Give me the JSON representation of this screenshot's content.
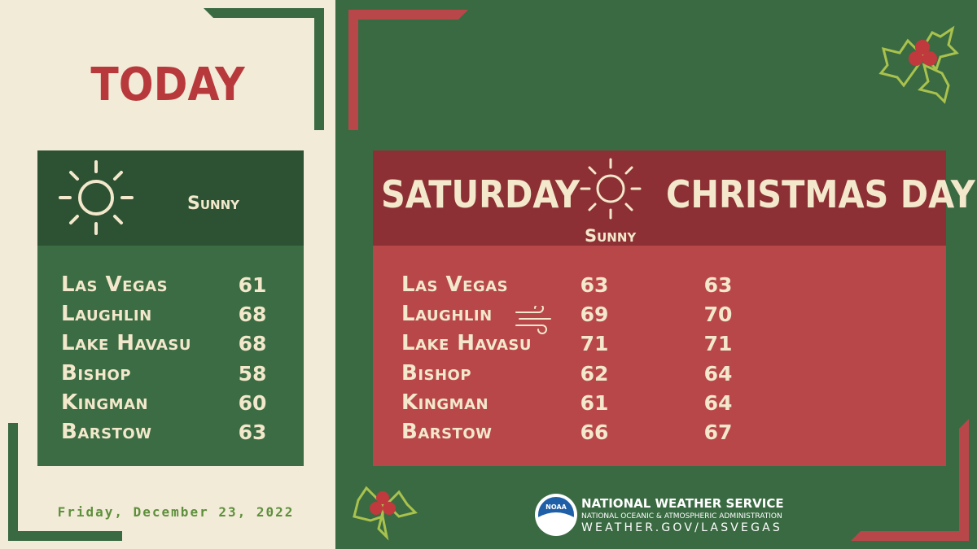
{
  "today": {
    "title": "TODAY",
    "condition": "Sunny",
    "rows": [
      [
        "Las Vegas",
        61
      ],
      [
        "Laughlin",
        68
      ],
      [
        "Lake Havasu",
        68
      ],
      [
        "Bishop",
        58
      ],
      [
        "Kingman",
        60
      ],
      [
        "Barstow",
        63
      ]
    ],
    "date": "Friday, December 23, 2022"
  },
  "weekend": {
    "headers": [
      "SATURDAY",
      "CHRISTMAS DAY"
    ],
    "condition": "Sunny",
    "rows": [
      [
        "Las Vegas",
        63,
        63
      ],
      [
        "Laughlin",
        69,
        70
      ],
      [
        "Lake Havasu",
        71,
        71
      ],
      [
        "Bishop",
        62,
        64
      ],
      [
        "Kingman",
        61,
        64
      ],
      [
        "Barstow",
        66,
        67
      ]
    ]
  },
  "footer": {
    "logo": "NOAA",
    "agency": "NATIONAL WEATHER SERVICE",
    "parent": "NATIONAL OCEANIC & ATMOSPHERIC ADMINISTRATION",
    "url": "WEATHER.GOV/LASVEGAS"
  }
}
